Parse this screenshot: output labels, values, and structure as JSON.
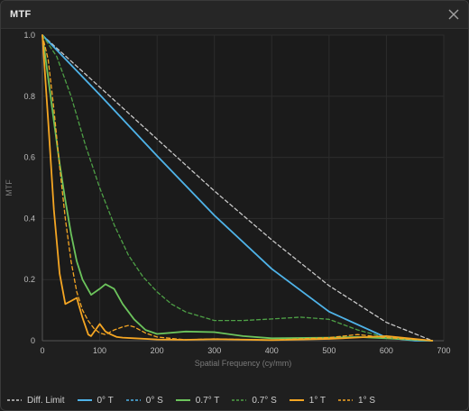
{
  "window": {
    "title": "MTF"
  },
  "chart_data": {
    "type": "line",
    "xlabel": "Spatial Frequency (cy/mm)",
    "ylabel": "MTF",
    "xlim": [
      0,
      700
    ],
    "ylim": [
      0,
      1.0
    ],
    "xticks": [
      0,
      100,
      200,
      300,
      400,
      500,
      600,
      700
    ],
    "yticks": [
      0,
      0.2,
      0.4,
      0.6,
      0.8,
      1.0
    ],
    "ytick_labels": [
      "0",
      "0.2",
      "0.4",
      "0.6",
      "0.8",
      "1.0"
    ],
    "grid": true,
    "legend_position": "bottom",
    "series": [
      {
        "name": "Diff. Limit",
        "color": "#c8c8c8",
        "dash": "4,3",
        "x": [
          0,
          100,
          200,
          300,
          400,
          500,
          600,
          680
        ],
        "y": [
          1.0,
          0.83,
          0.66,
          0.49,
          0.33,
          0.18,
          0.06,
          0.0
        ]
      },
      {
        "name": "0° T",
        "color": "#4fb3e8",
        "dash": "",
        "x": [
          0,
          100,
          200,
          300,
          400,
          500,
          600,
          650,
          680
        ],
        "y": [
          1.0,
          0.805,
          0.605,
          0.41,
          0.235,
          0.095,
          0.01,
          0.0,
          0.0
        ]
      },
      {
        "name": "0° S",
        "color": "#4fb3e8",
        "dash": "4,3",
        "x": [
          0,
          100,
          200,
          300,
          400,
          500,
          600,
          650,
          680
        ],
        "y": [
          1.0,
          0.805,
          0.605,
          0.41,
          0.235,
          0.095,
          0.01,
          0.0,
          0.0
        ]
      },
      {
        "name": "0.7° T",
        "color": "#6cc45c",
        "dash": "",
        "x": [
          0,
          10,
          20,
          30,
          40,
          50,
          60,
          70,
          85,
          100,
          110,
          125,
          140,
          160,
          180,
          200,
          250,
          300,
          350,
          400,
          500,
          550,
          600,
          680
        ],
        "y": [
          1.0,
          0.86,
          0.72,
          0.58,
          0.46,
          0.35,
          0.26,
          0.2,
          0.15,
          0.17,
          0.185,
          0.17,
          0.12,
          0.07,
          0.035,
          0.022,
          0.03,
          0.028,
          0.015,
          0.008,
          0.01,
          0.012,
          0.008,
          0.0
        ]
      },
      {
        "name": "0.7° S",
        "color": "#4ea046",
        "dash": "4,3",
        "x": [
          0,
          25,
          50,
          75,
          100,
          125,
          150,
          175,
          200,
          225,
          250,
          300,
          350,
          400,
          450,
          500,
          550,
          600,
          680
        ],
        "y": [
          1.0,
          0.93,
          0.8,
          0.64,
          0.5,
          0.38,
          0.28,
          0.21,
          0.16,
          0.12,
          0.094,
          0.066,
          0.066,
          0.071,
          0.077,
          0.07,
          0.035,
          0.01,
          0.0
        ]
      },
      {
        "name": "1° T",
        "color": "#f5a623",
        "dash": "",
        "x": [
          0,
          10,
          20,
          30,
          40,
          50,
          60,
          70,
          80,
          85,
          100,
          110,
          120,
          130,
          140,
          160,
          200,
          250,
          300,
          400,
          500,
          600,
          680
        ],
        "y": [
          1.0,
          0.72,
          0.43,
          0.22,
          0.12,
          0.13,
          0.14,
          0.075,
          0.02,
          0.015,
          0.055,
          0.03,
          0.02,
          0.012,
          0.01,
          0.008,
          0.004,
          0.003,
          0.005,
          0.002,
          0.006,
          0.015,
          0.0
        ]
      },
      {
        "name": "1° S",
        "color": "#f5a623",
        "dash": "4,3",
        "x": [
          0,
          10,
          20,
          30,
          40,
          50,
          60,
          70,
          80,
          90,
          100,
          110,
          125,
          140,
          150,
          160,
          180,
          200,
          250,
          300,
          400,
          500,
          550,
          600,
          680
        ],
        "y": [
          1.0,
          0.92,
          0.76,
          0.57,
          0.4,
          0.26,
          0.16,
          0.1,
          0.065,
          0.04,
          0.025,
          0.02,
          0.035,
          0.045,
          0.05,
          0.045,
          0.025,
          0.012,
          0.003,
          0.006,
          0.002,
          0.01,
          0.02,
          0.01,
          0.0
        ]
      }
    ]
  }
}
